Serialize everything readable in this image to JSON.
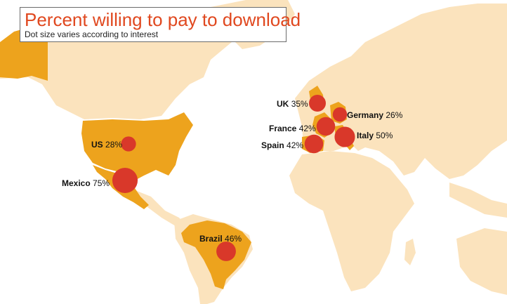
{
  "title": "Percent willing to pay to download",
  "subtitle": "Dot size varies according to interest",
  "colors": {
    "land": "#fbe3bd",
    "highlight": "#eda31d",
    "dot": "#d9382a",
    "title": "#e0481f"
  },
  "chart_data": {
    "type": "map",
    "metric": "Percent willing to pay to download",
    "countries": [
      {
        "name": "UK",
        "percent": "35%",
        "value": 35
      },
      {
        "name": "Germany",
        "percent": "26%",
        "value": 26
      },
      {
        "name": "France",
        "percent": "42%",
        "value": 42
      },
      {
        "name": "Italy",
        "percent": "50%",
        "value": 50
      },
      {
        "name": "Spain",
        "percent": "42%",
        "value": 42
      },
      {
        "name": "US",
        "percent": "28%",
        "value": 28
      },
      {
        "name": "Mexico",
        "percent": "75%",
        "value": 75
      },
      {
        "name": "Brazil",
        "percent": "46%",
        "value": 46
      }
    ]
  }
}
